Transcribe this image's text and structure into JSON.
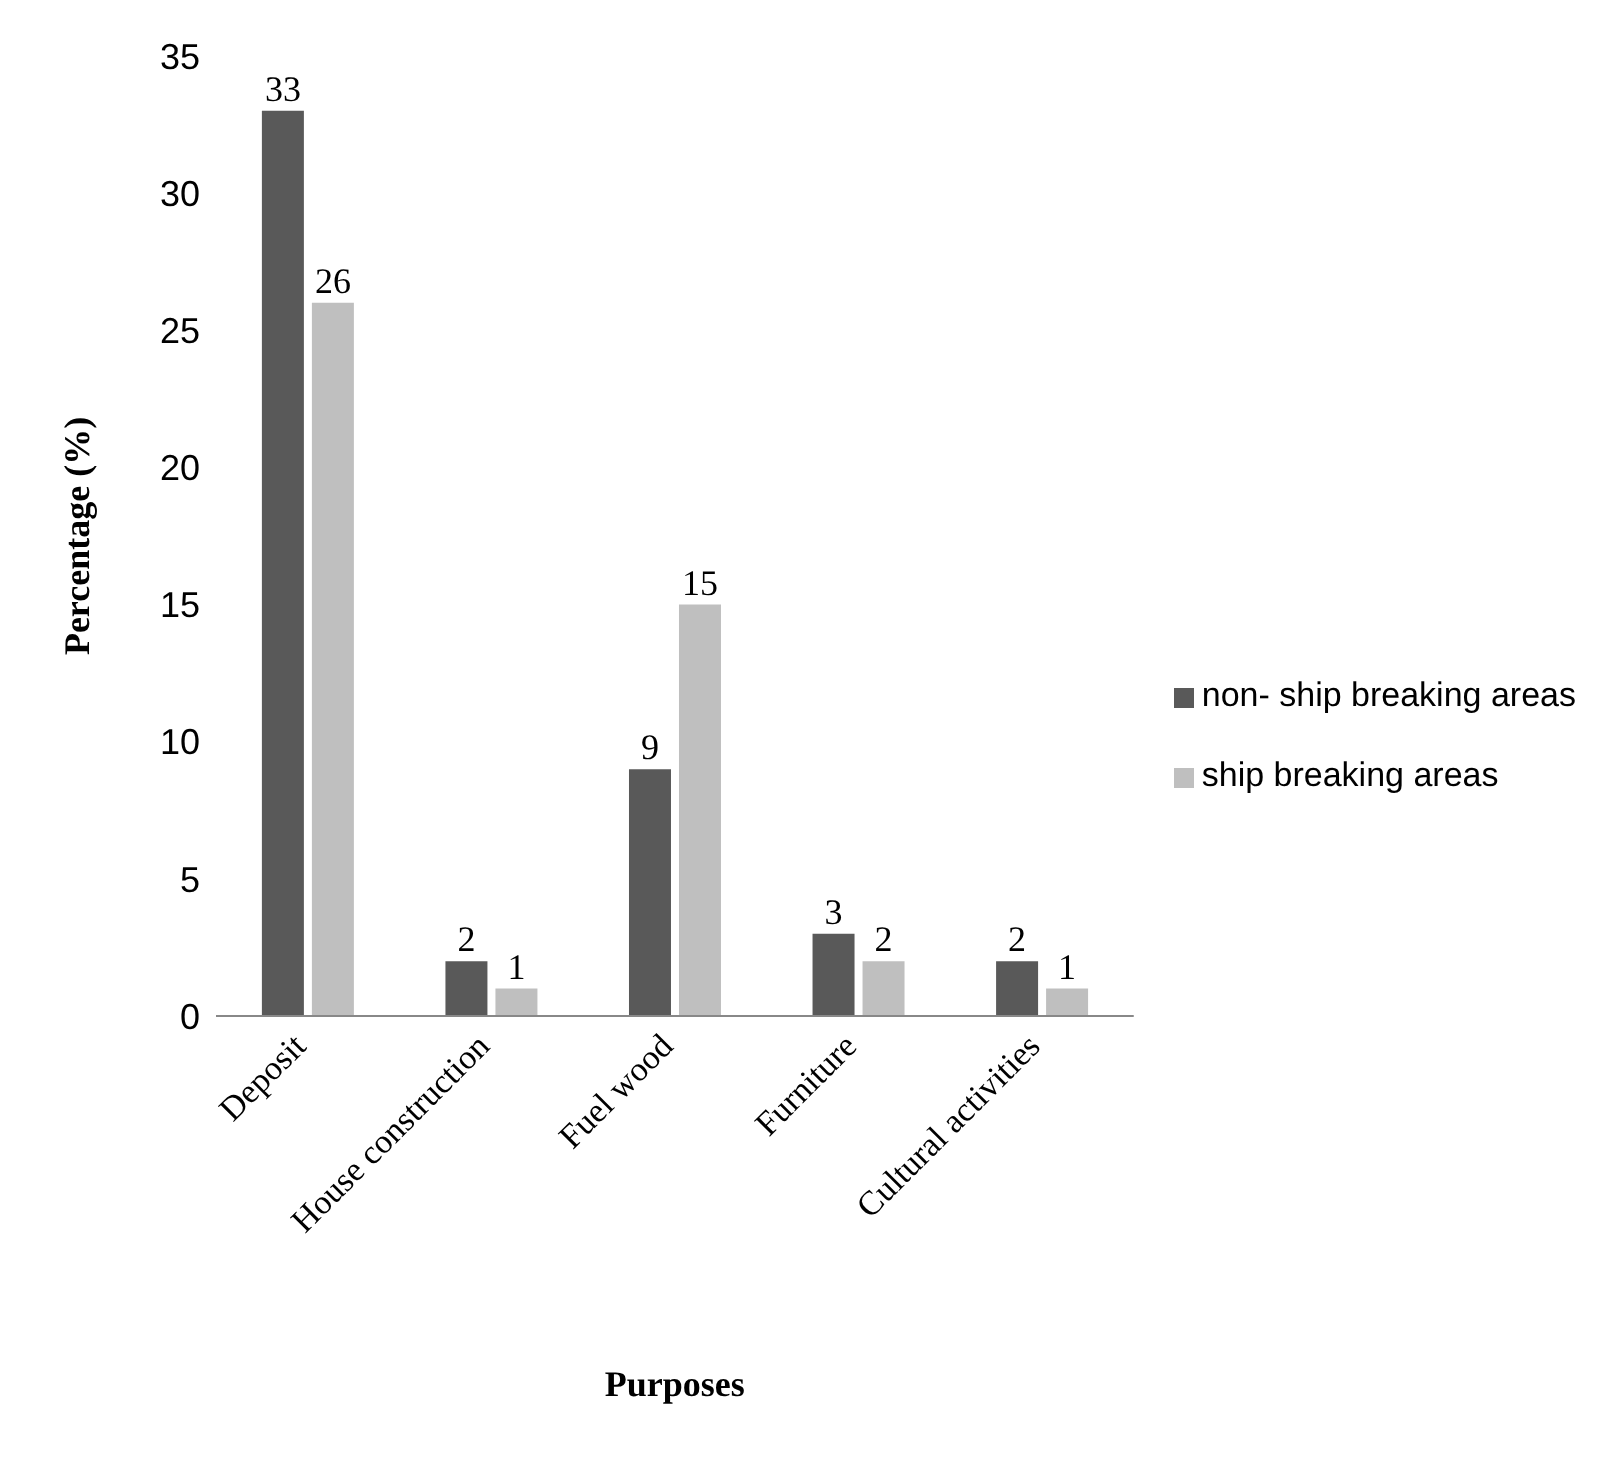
{
  "chart_data": {
    "type": "bar",
    "xlabel": "Purposes",
    "ylabel": "Percentage (%)",
    "categories": [
      "Deposit",
      "House construction",
      "Fuel wood",
      "Furniture",
      "Cultural activities"
    ],
    "series": [
      {
        "name": "non- ship breaking areas",
        "color": "#595959",
        "values": [
          33,
          2,
          9,
          3,
          2
        ]
      },
      {
        "name": "ship breaking areas",
        "color": "#bfbfbf",
        "values": [
          26,
          1,
          15,
          2,
          1
        ]
      }
    ],
    "ylim": [
      0,
      35
    ],
    "yticks": [
      0,
      5,
      10,
      15,
      20,
      25,
      30,
      35
    ],
    "grid": false,
    "legend": "right",
    "data_labels": true
  }
}
